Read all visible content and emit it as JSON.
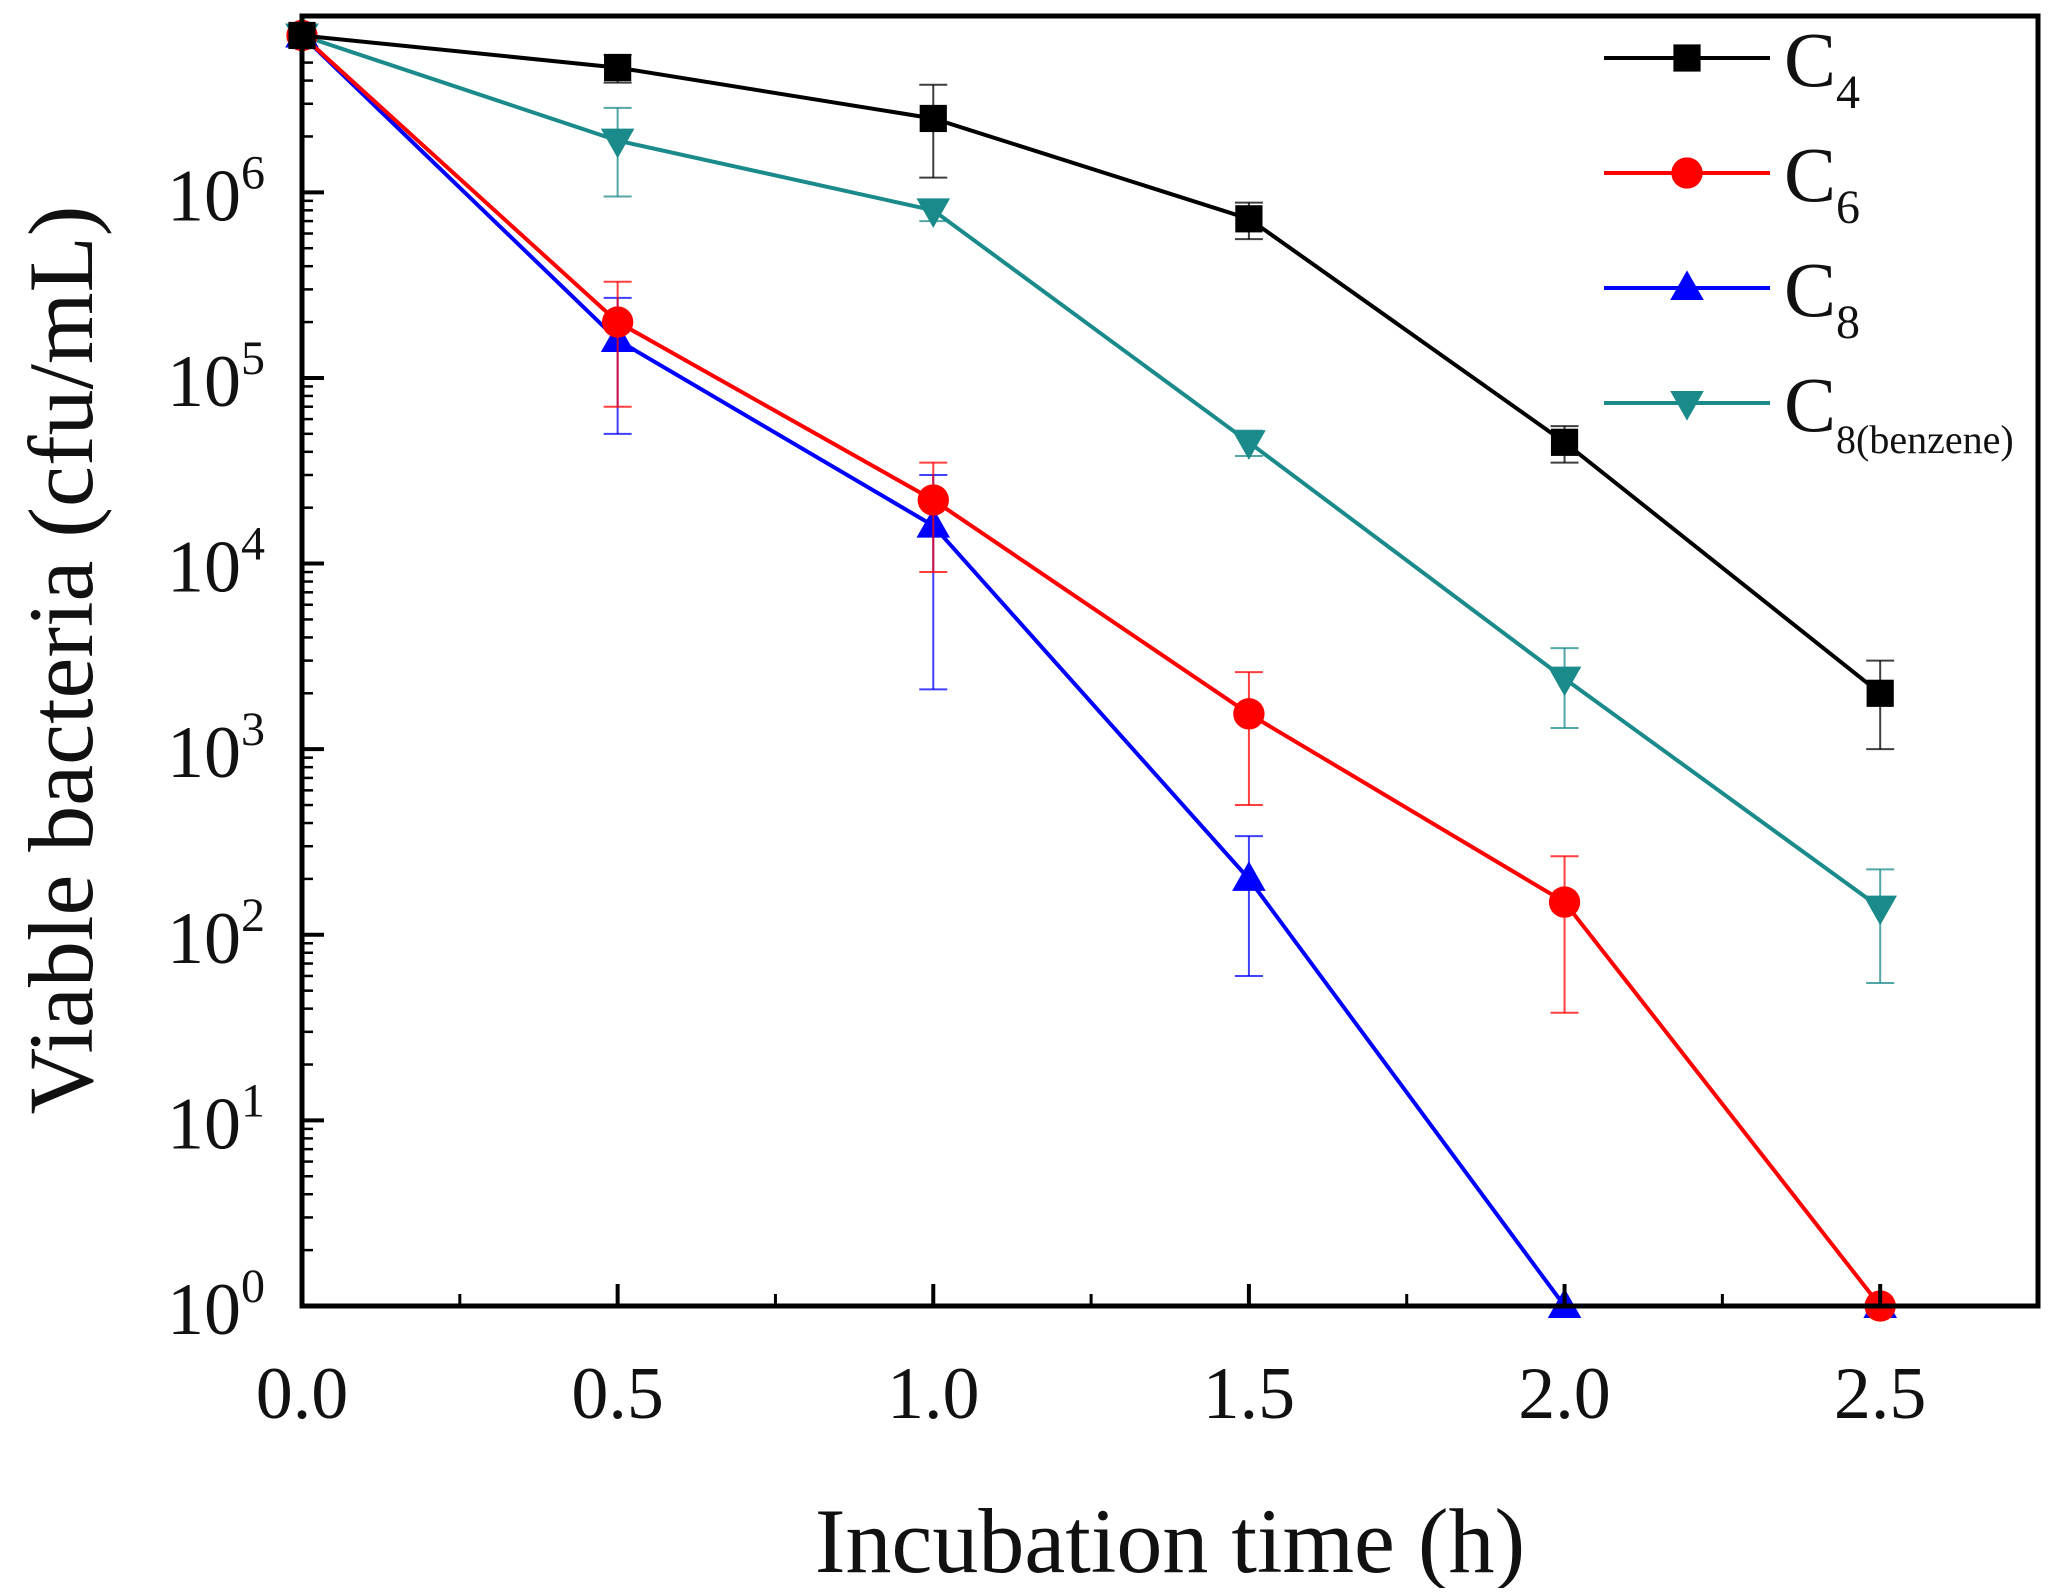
{
  "chart_data": {
    "type": "line",
    "scale": "log",
    "xlabel": "Incubation time (h)",
    "ylabel": "Viable bacteria (cfu/mL)",
    "xlim": [
      0,
      2.75
    ],
    "ylim_exp": [
      0,
      6.95
    ],
    "x_ticks": [
      {
        "value": 0.0,
        "label": "0.0"
      },
      {
        "value": 0.5,
        "label": "0.5"
      },
      {
        "value": 1.0,
        "label": "1.0"
      },
      {
        "value": 1.5,
        "label": "1.5"
      },
      {
        "value": 2.0,
        "label": "2.0"
      },
      {
        "value": 2.5,
        "label": "2.5"
      }
    ],
    "x_minor_ticks": [
      0.25,
      0.75,
      1.25,
      1.75,
      2.25,
      2.75
    ],
    "y_ticks": [
      {
        "exp": 0,
        "base": "10",
        "sup": "0"
      },
      {
        "exp": 1,
        "base": "10",
        "sup": "1"
      },
      {
        "exp": 2,
        "base": "10",
        "sup": "2"
      },
      {
        "exp": 3,
        "base": "10",
        "sup": "3"
      },
      {
        "exp": 4,
        "base": "10",
        "sup": "4"
      },
      {
        "exp": 5,
        "base": "10",
        "sup": "5"
      },
      {
        "exp": 6,
        "base": "10",
        "sup": "6"
      }
    ],
    "series": [
      {
        "name": "C4",
        "label_main": "C",
        "label_sub": "4",
        "color": "#000000",
        "marker": "square",
        "x": [
          0,
          0.5,
          1.0,
          1.5,
          2.0,
          2.5
        ],
        "y": [
          7000000,
          4700000,
          2500000,
          720000,
          45000,
          2000
        ],
        "err_lo": [
          null,
          3900000,
          1200000,
          560000,
          35000,
          1000
        ],
        "err_hi": [
          null,
          5500000,
          3800000,
          880000,
          55000,
          3000
        ]
      },
      {
        "name": "C6",
        "label_main": "C",
        "label_sub": "6",
        "color": "#ff0000",
        "marker": "circle",
        "x": [
          0,
          0.5,
          1.0,
          1.5,
          2.0,
          2.5
        ],
        "y": [
          7000000,
          200000,
          22000,
          1550,
          150,
          1
        ],
        "err_lo": [
          null,
          70000,
          9000,
          500,
          38,
          null
        ],
        "err_hi": [
          null,
          330000,
          35000,
          2600,
          265,
          null
        ]
      },
      {
        "name": "C8",
        "label_main": "C",
        "label_sub": "8",
        "color": "#0000ff",
        "marker": "triangle-up",
        "x": [
          0,
          0.5,
          1.0,
          1.5,
          2.0,
          2.5
        ],
        "y": [
          7000000,
          160000,
          16000,
          200,
          1,
          1
        ],
        "err_lo": [
          null,
          50000,
          2100,
          60,
          null,
          null
        ],
        "err_hi": [
          null,
          270000,
          30000,
          340,
          null,
          null
        ]
      },
      {
        "name": "C8(benzene)",
        "label_main": "C",
        "label_sub": "8(benzene)",
        "color": "#1a8a8a",
        "marker": "triangle-down",
        "x": [
          0,
          0.5,
          1.0,
          1.5,
          2.0,
          2.5
        ],
        "y": [
          7000000,
          1900000,
          800000,
          45000,
          2400,
          140
        ],
        "err_lo": [
          null,
          950000,
          700000,
          38000,
          1300,
          55
        ],
        "err_hi": [
          null,
          2850000,
          900000,
          52000,
          3500,
          225
        ]
      }
    ],
    "legend_position": "top-right",
    "grid": false
  }
}
